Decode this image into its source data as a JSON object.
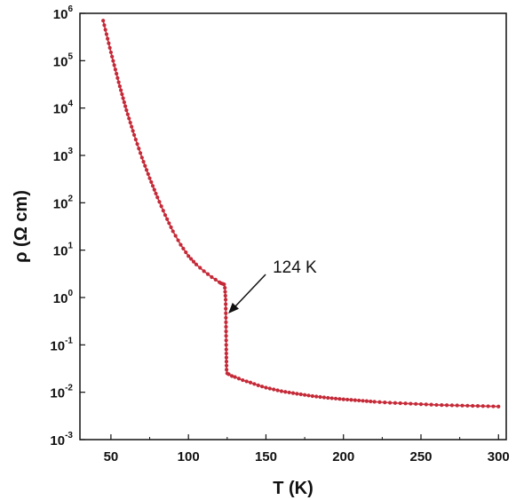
{
  "chart_data": {
    "type": "scatter",
    "title": "",
    "xlabel": "T (K)",
    "ylabel": "ρ (Ω cm)",
    "xlim": [
      30,
      305
    ],
    "ylim_exponent": [
      -3,
      6
    ],
    "y_scale": "log",
    "grid": false,
    "legend": "none",
    "x_ticks": [
      "50",
      "100",
      "150",
      "200",
      "250",
      "300"
    ],
    "x_tick_values": [
      50,
      100,
      150,
      200,
      250,
      300
    ],
    "y_ticks": [
      {
        "base": "10",
        "exp": "-3",
        "value": 0.001
      },
      {
        "base": "10",
        "exp": "-2",
        "value": 0.01
      },
      {
        "base": "10",
        "exp": "-1",
        "value": 0.1
      },
      {
        "base": "10",
        "exp": "0",
        "value": 1
      },
      {
        "base": "10",
        "exp": "1",
        "value": 10
      },
      {
        "base": "10",
        "exp": "2",
        "value": 100
      },
      {
        "base": "10",
        "exp": "3",
        "value": 1000
      },
      {
        "base": "10",
        "exp": "4",
        "value": 10000
      },
      {
        "base": "10",
        "exp": "5",
        "value": 100000
      },
      {
        "base": "10",
        "exp": "6",
        "value": 1000000
      }
    ],
    "series": [
      {
        "color": "#d0303c",
        "marker_color": "#c42a38",
        "points": [
          [
            45,
            700000
          ],
          [
            50,
            150000
          ],
          [
            55,
            35000
          ],
          [
            60,
            9000
          ],
          [
            65,
            2700
          ],
          [
            70,
            900
          ],
          [
            75,
            330
          ],
          [
            80,
            130
          ],
          [
            85,
            55
          ],
          [
            90,
            25
          ],
          [
            95,
            13
          ],
          [
            100,
            7.5
          ],
          [
            105,
            5.0
          ],
          [
            110,
            3.6
          ],
          [
            115,
            2.7
          ],
          [
            120,
            2.1
          ],
          [
            121,
            2.0
          ],
          [
            122,
            1.95
          ],
          [
            123,
            1.9
          ],
          [
            123.5,
            1.6
          ],
          [
            124,
            0.9
          ],
          [
            124.2,
            0.3
          ],
          [
            124.4,
            0.08
          ],
          [
            124.6,
            0.03
          ],
          [
            125,
            0.025
          ],
          [
            126,
            0.024
          ],
          [
            128,
            0.022
          ],
          [
            130,
            0.021
          ],
          [
            135,
            0.018
          ],
          [
            140,
            0.016
          ],
          [
            145,
            0.014
          ],
          [
            150,
            0.0125
          ],
          [
            160,
            0.0105
          ],
          [
            170,
            0.0093
          ],
          [
            180,
            0.0083
          ],
          [
            190,
            0.0076
          ],
          [
            200,
            0.0071
          ],
          [
            210,
            0.0067
          ],
          [
            220,
            0.0063
          ],
          [
            230,
            0.006
          ],
          [
            240,
            0.0058
          ],
          [
            250,
            0.0056
          ],
          [
            260,
            0.0054
          ],
          [
            270,
            0.0053
          ],
          [
            280,
            0.0052
          ],
          [
            290,
            0.0051
          ],
          [
            300,
            0.005
          ]
        ]
      }
    ],
    "annotations": [
      {
        "text": "124 K",
        "x": 124,
        "y": 1.0
      }
    ]
  }
}
